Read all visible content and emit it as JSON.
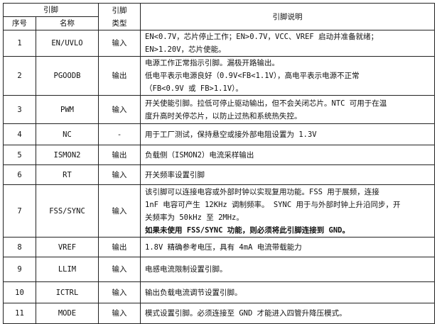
{
  "header": {
    "pin_group": "引脚",
    "pin_type": "引脚类型",
    "pin_type_line1": "引脚",
    "pin_type_line2": "类型",
    "description": "引脚说明",
    "number": "序号",
    "name": "名称"
  },
  "rows": [
    {
      "no": "1",
      "name": "EN/UVLO",
      "type": "输入",
      "desc": [
        "EN<0.7V，芯片停止工作；EN>0.7V，VCC、VREF 启动并准备就绪；",
        "EN>1.20V，芯片使能。"
      ]
    },
    {
      "no": "2",
      "name": "PGOODB",
      "type": "输出",
      "desc": [
        "电源工作正常指示引脚。漏极开路输出。",
        "低电平表示电源良好（0.9V<FB<1.1V），高电平表示电源不正常",
        "（FB<0.9V 或 FB>1.1V）。"
      ]
    },
    {
      "no": "3",
      "name": "PWM",
      "type": "输入",
      "desc": [
        "开关使能引脚。拉低可停止驱动输出，但不会关闭芯片。NTC 可用于在温",
        "度升高时关停芯片，以防止过热和系统热失控。"
      ]
    },
    {
      "no": "4",
      "name": "NC",
      "type": "-",
      "desc": [
        "用于工厂测试，保持悬空或接外部电阻设置为 1.3V"
      ]
    },
    {
      "no": "5",
      "name": "ISMON2",
      "type": "输出",
      "desc": [
        "负载侧（ISMON2）电流采样输出"
      ]
    },
    {
      "no": "6",
      "name": "RT",
      "type": "输入",
      "desc": [
        "开关频率设置引脚"
      ]
    },
    {
      "no": "7",
      "name": "FSS/SYNC",
      "type": "输入",
      "desc": [
        "该引脚可以连接电容或外部时钟以实现复用功能。FSS 用于展频，连接",
        "1nF 电容可产生 12KHz 调制频率。 SYNC 用于与外部时钟上升沿同步，开",
        "关频率为 50kHz 至 2MHz。"
      ],
      "desc_bold": "如果未使用 FSS/SYNC 功能，则必须将此引脚连接到 GND。"
    },
    {
      "no": "8",
      "name": "VREF",
      "type": "输出",
      "desc": [
        "1.8V 精确参考电压，具有 4mA 电流带载能力"
      ]
    },
    {
      "no": "9",
      "name": "LLIM",
      "type": "输入",
      "desc": [
        "电感电流限制设置引脚。"
      ]
    },
    {
      "no": "10",
      "name": "ICTRL",
      "type": "输入",
      "desc": [
        "输出负载电流调节设置引脚。"
      ]
    },
    {
      "no": "11",
      "name": "MODE",
      "type": "输入",
      "desc": [
        "模式设置引脚。必须连接至 GND 才能进入四管升降压模式。"
      ]
    }
  ]
}
